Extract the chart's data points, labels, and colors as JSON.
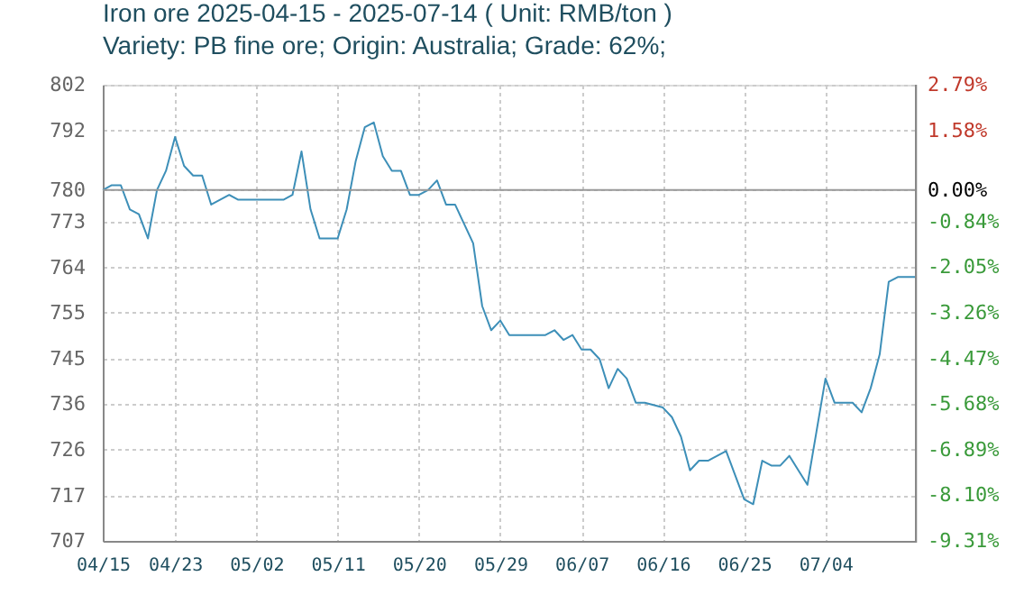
{
  "chart_data": {
    "type": "line",
    "title": "Iron ore 2025-04-15 - 2025-07-14    ( Unit: RMB/ton )",
    "subtitle": "Variety: PB  fine ore; Origin: Australia; Grade: 62%;",
    "x": [
      "2025-04-15",
      "2025-04-16",
      "2025-04-17",
      "2025-04-18",
      "2025-04-19",
      "2025-04-20",
      "2025-04-21",
      "2025-04-22",
      "2025-04-23",
      "2025-04-24",
      "2025-04-25",
      "2025-04-26",
      "2025-04-27",
      "2025-04-29",
      "2025-04-30",
      "2025-05-05",
      "2025-05-06",
      "2025-05-07",
      "2025-05-08",
      "2025-05-09",
      "2025-05-11",
      "2025-05-12",
      "2025-05-13",
      "2025-05-14",
      "2025-05-15",
      "2025-05-16",
      "2025-05-17",
      "2025-05-18",
      "2025-05-19",
      "2025-05-20",
      "2025-05-21",
      "2025-05-22",
      "2025-05-23",
      "2025-05-24",
      "2025-05-25",
      "2025-05-26",
      "2025-05-27",
      "2025-05-28",
      "2025-05-29",
      "2025-05-30",
      "2025-06-03",
      "2025-06-04",
      "2025-06-05",
      "2025-06-06",
      "2025-06-07",
      "2025-06-08",
      "2025-06-09",
      "2025-06-10",
      "2025-06-11",
      "2025-06-12",
      "2025-06-13",
      "2025-06-14",
      "2025-06-16",
      "2025-06-17",
      "2025-06-18",
      "2025-06-19",
      "2025-06-20",
      "2025-06-21",
      "2025-06-23",
      "2025-06-24",
      "2025-06-25",
      "2025-06-26",
      "2025-06-27",
      "2025-06-28",
      "2025-06-29",
      "2025-06-30",
      "2025-07-01",
      "2025-07-02",
      "2025-07-03",
      "2025-07-04",
      "2025-07-05",
      "2025-07-06",
      "2025-07-07",
      "2025-07-08",
      "2025-07-09",
      "2025-07-10",
      "2025-07-11",
      "2025-07-12",
      "2025-07-13",
      "2025-07-14"
    ],
    "series": [
      {
        "color": "#3d8fb8",
        "values": [
          780,
          781,
          781,
          776,
          775,
          770,
          780,
          784,
          791,
          785,
          783,
          783,
          777,
          779,
          778,
          778,
          779,
          788,
          776,
          770,
          770,
          776,
          786,
          793,
          794,
          787,
          784,
          784,
          779,
          779,
          780,
          782,
          777,
          777,
          773,
          769,
          756,
          751,
          753,
          750,
          750,
          751,
          749,
          750,
          747,
          747,
          745,
          739,
          743,
          741,
          736,
          736,
          735,
          733,
          729,
          722,
          724,
          724,
          726,
          721,
          716,
          715,
          724,
          723,
          723,
          725,
          722,
          719,
          730,
          741,
          736,
          736,
          736,
          734,
          739,
          746,
          761,
          762,
          762,
          762
        ]
      }
    ],
    "xlim": [
      "2025-04-15",
      "2025-07-14"
    ],
    "xticks": [
      {
        "value": "2025-04-15",
        "label": "04/15"
      },
      {
        "value": "2025-04-23",
        "label": "04/23"
      },
      {
        "value": "2025-05-02",
        "label": "05/02"
      },
      {
        "value": "2025-05-11",
        "label": "05/11"
      },
      {
        "value": "2025-05-20",
        "label": "05/20"
      },
      {
        "value": "2025-05-29",
        "label": "05/29"
      },
      {
        "value": "2025-06-07",
        "label": "06/07"
      },
      {
        "value": "2025-06-16",
        "label": "06/16"
      },
      {
        "value": "2025-06-25",
        "label": "06/25"
      },
      {
        "value": "2025-07-04",
        "label": "07/04"
      }
    ],
    "ylim": [
      707.4,
      801.8
    ],
    "yticks": [
      {
        "value": 801.8,
        "label": "802"
      },
      {
        "value": 792.3,
        "label": "792"
      },
      {
        "value": 780,
        "label": "780"
      },
      {
        "value": 773.4,
        "label": "773"
      },
      {
        "value": 764,
        "label": "764"
      },
      {
        "value": 754.6,
        "label": "755"
      },
      {
        "value": 745.1,
        "label": "745"
      },
      {
        "value": 735.7,
        "label": "736"
      },
      {
        "value": 726.3,
        "label": "726"
      },
      {
        "value": 716.8,
        "label": "717"
      },
      {
        "value": 707.4,
        "label": "707"
      }
    ],
    "y2lim": [
      -9.31,
      2.79
    ],
    "y2ticks": [
      {
        "value": 2.79,
        "label": "2.79%"
      },
      {
        "value": 1.58,
        "label": "1.58%"
      },
      {
        "value": 0,
        "label": "0.00%"
      },
      {
        "value": -0.84,
        "label": "-0.84%"
      },
      {
        "value": -2.05,
        "label": "-2.05%"
      },
      {
        "value": -3.26,
        "label": "-3.26%"
      },
      {
        "value": -4.47,
        "label": "-4.47%"
      },
      {
        "value": -5.68,
        "label": "-5.68%"
      },
      {
        "value": -6.89,
        "label": "-6.89%"
      },
      {
        "value": -8.1,
        "label": "-8.10%"
      },
      {
        "value": -9.31,
        "label": "-9.31%"
      }
    ],
    "ref_lines": [
      {
        "axis": "y",
        "value": 780,
        "color": "#999999"
      }
    ],
    "grid": true,
    "marker": "none",
    "line_style": "solid"
  }
}
